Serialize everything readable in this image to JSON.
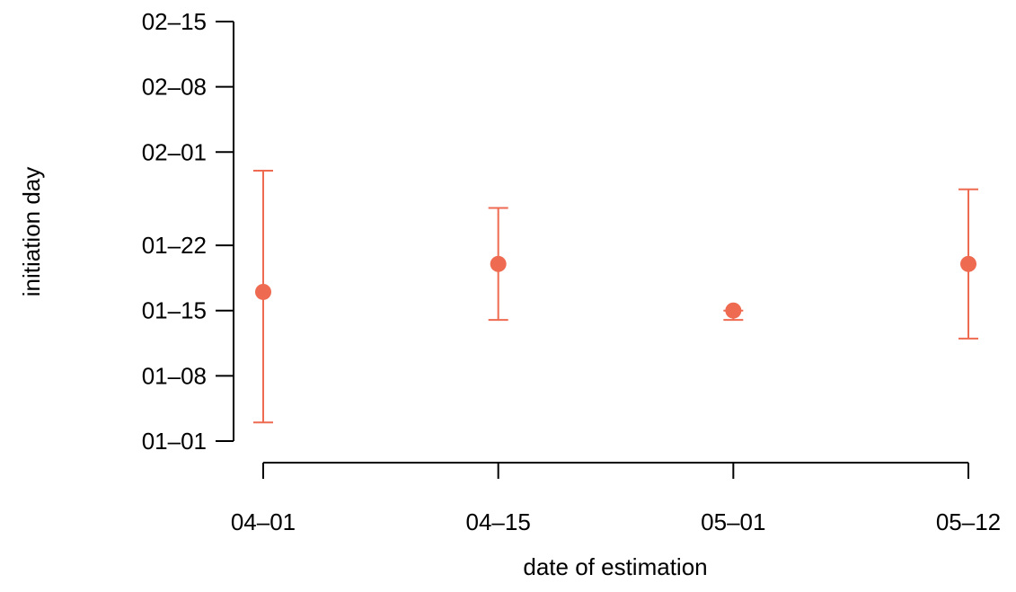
{
  "chart_data": {
    "type": "scatter",
    "xlabel": "date of estimation",
    "ylabel": "initiation day",
    "categories": [
      "04–01",
      "04–15",
      "05–01",
      "05–12"
    ],
    "y_ticks": [
      "01–01",
      "01–08",
      "01–15",
      "01–22",
      "02–01",
      "02–08",
      "02–15"
    ],
    "ylim": [
      "01-01",
      "02-15"
    ],
    "grid": false,
    "colors": {
      "point": "#ee6a50",
      "axis": "#000000"
    },
    "series": [
      {
        "points": [
          {
            "x": "04–01",
            "y": "01-17",
            "lower": "01-03",
            "upper": "01-30"
          },
          {
            "x": "04–15",
            "y": "01-20",
            "lower": "01-14",
            "upper": "01-26"
          },
          {
            "x": "05–01",
            "y": "01-15",
            "lower": "01-14",
            "upper": "01-15"
          },
          {
            "x": "05–12",
            "y": "01-20",
            "lower": "01-12",
            "upper": "01-28"
          }
        ]
      }
    ]
  }
}
